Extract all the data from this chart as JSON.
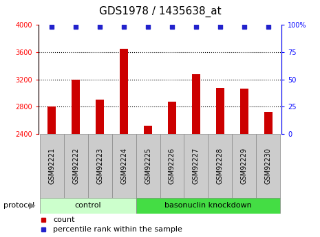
{
  "title": "GDS1978 / 1435638_at",
  "samples": [
    "GSM92221",
    "GSM92222",
    "GSM92223",
    "GSM92224",
    "GSM92225",
    "GSM92226",
    "GSM92227",
    "GSM92228",
    "GSM92229",
    "GSM92230"
  ],
  "counts": [
    2800,
    3200,
    2900,
    3650,
    2520,
    2870,
    3280,
    3070,
    3060,
    2720
  ],
  "percentile_ranks": [
    98,
    98,
    98,
    98,
    98,
    98,
    98,
    98,
    98,
    98
  ],
  "bar_color": "#cc0000",
  "dot_color": "#2222cc",
  "ylim_left": [
    2400,
    4000
  ],
  "ylim_right": [
    0,
    100
  ],
  "yticks_left": [
    2400,
    2800,
    3200,
    3600,
    4000
  ],
  "yticks_right": [
    0,
    25,
    50,
    75,
    100
  ],
  "ytick_labels_right": [
    "0",
    "25",
    "50",
    "75",
    "100%"
  ],
  "grid_values": [
    2800,
    3200,
    3600
  ],
  "ctrl_count": 4,
  "kd_count": 6,
  "control_label": "control",
  "knockdown_label": "basonuclin knockdown",
  "control_color": "#ccffcc",
  "knockdown_color": "#44dd44",
  "protocol_label": "protocol",
  "legend_count_label": "count",
  "legend_percentile_label": "percentile rank within the sample",
  "tick_bg_color": "#cccccc",
  "bar_width": 0.35,
  "title_fontsize": 11,
  "tick_fontsize": 7,
  "label_fontsize": 8
}
